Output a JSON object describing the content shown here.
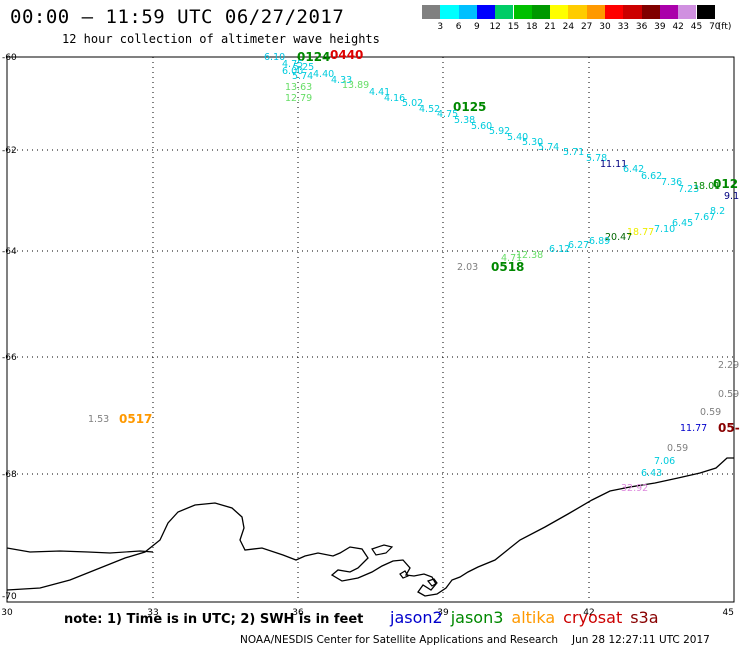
{
  "header": {
    "title": "00:00 – 11:59 UTC 06/27/2017",
    "subtitle": "12 hour collection of altimeter wave heights"
  },
  "legend_scale": {
    "colors": [
      "#808080",
      "#00ffff",
      "#00c0ff",
      "#0000ff",
      "#00cc66",
      "#00c000",
      "#009900",
      "#ffff00",
      "#ffcc00",
      "#ff9900",
      "#ff0000",
      "#cc0000",
      "#800000",
      "#aa00aa",
      "#d090e0",
      "#000000"
    ],
    "labels": [
      "3",
      "6",
      "9",
      "12",
      "15",
      "18",
      "21",
      "24",
      "27",
      "30",
      "33",
      "36",
      "39",
      "42",
      "45",
      "70"
    ],
    "unit": "(ft)"
  },
  "axes": {
    "lon_ticks": [
      "30",
      "33",
      "36",
      "39",
      "42",
      "45"
    ],
    "lat_ticks": [
      "-60",
      "-62",
      "-64",
      "-66",
      "-68",
      "-70"
    ]
  },
  "wave_labels": [
    {
      "text": "6.10",
      "color": "#00c0e0"
    },
    {
      "text": "0124",
      "color": "#008800",
      "bold": true
    },
    {
      "text": "0440",
      "color": "#dd0000",
      "bold": true
    },
    {
      "text": "4.75",
      "color": "#00ccdd"
    },
    {
      "text": "6.00",
      "color": "#00ccdd"
    },
    {
      "text": "5.25",
      "color": "#00ccdd"
    },
    {
      "text": "5.74",
      "color": "#00ccdd"
    },
    {
      "text": "4.40",
      "color": "#00ccdd"
    },
    {
      "text": "4.33",
      "color": "#00ccdd"
    },
    {
      "text": "13.63",
      "color": "#66dd66"
    },
    {
      "text": "13.89",
      "color": "#66dd66"
    },
    {
      "text": "12.79",
      "color": "#66dd66"
    },
    {
      "text": "4.41",
      "color": "#00ccdd"
    },
    {
      "text": "4.16",
      "color": "#00ccdd"
    },
    {
      "text": "5.02",
      "color": "#00ccdd"
    },
    {
      "text": "4.52",
      "color": "#00ccdd"
    },
    {
      "text": "0125",
      "color": "#008800",
      "bold": true
    },
    {
      "text": "4.75",
      "color": "#00ccdd"
    },
    {
      "text": "5.38",
      "color": "#00ccdd"
    },
    {
      "text": "5.60",
      "color": "#00ccdd"
    },
    {
      "text": "5.92",
      "color": "#00ccdd"
    },
    {
      "text": "5.40",
      "color": "#00ccdd"
    },
    {
      "text": "5.30",
      "color": "#00ccdd"
    },
    {
      "text": "5.74",
      "color": "#00ccdd"
    },
    {
      "text": "5.71",
      "color": "#00ccdd"
    },
    {
      "text": "5.78",
      "color": "#00ccdd"
    },
    {
      "text": "11.11",
      "color": "#000080"
    },
    {
      "text": "6.42",
      "color": "#00ccdd"
    },
    {
      "text": "6.62",
      "color": "#00ccdd"
    },
    {
      "text": "7.36",
      "color": "#00ccdd"
    },
    {
      "text": "7.23",
      "color": "#00ccdd"
    },
    {
      "text": "18.01",
      "color": "#008800"
    },
    {
      "text": "012",
      "color": "#008800",
      "bold": true
    },
    {
      "text": "9.1",
      "color": "#000080"
    },
    {
      "text": "8.2",
      "color": "#00ccdd"
    },
    {
      "text": "7.67",
      "color": "#00ccdd"
    },
    {
      "text": "6.45",
      "color": "#00ccdd"
    },
    {
      "text": "7.10",
      "color": "#00ccdd"
    },
    {
      "text": "18.77",
      "color": "#eeee00"
    },
    {
      "text": "20.47",
      "color": "#006600"
    },
    {
      "text": "6.89",
      "color": "#00ccdd"
    },
    {
      "text": "6.27",
      "color": "#00ccdd"
    },
    {
      "text": "6.12",
      "color": "#00ccdd"
    },
    {
      "text": "12.38",
      "color": "#66dd66"
    },
    {
      "text": "4.71",
      "color": "#66dd66"
    },
    {
      "text": "2.03",
      "color": "#808080"
    },
    {
      "text": "0518",
      "color": "#008800",
      "bold": true
    },
    {
      "text": "1.53",
      "color": "#808080"
    },
    {
      "text": "0517",
      "color": "#ff9900",
      "bold": true
    },
    {
      "text": "2.29",
      "color": "#808080"
    },
    {
      "text": "0.59",
      "color": "#808080"
    },
    {
      "text": "0.59",
      "color": "#808080"
    },
    {
      "text": "11.77",
      "color": "#0000cc"
    },
    {
      "text": "05-",
      "color": "#880000",
      "bold": true
    },
    {
      "text": "0.59",
      "color": "#808080"
    },
    {
      "text": "7.06",
      "color": "#00ccdd"
    },
    {
      "text": "6.43",
      "color": "#00ccdd"
    },
    {
      "text": "32.92",
      "color": "#dd88dd"
    }
  ],
  "footer": {
    "note": "note: 1) Time is in UTC; 2) SWH is in feet",
    "satellites": [
      {
        "name": "jason2",
        "color": "#0000cc"
      },
      {
        "name": "jason3",
        "color": "#008800"
      },
      {
        "name": "altika",
        "color": "#ff9900"
      },
      {
        "name": "cryosat",
        "color": "#cc0000"
      },
      {
        "name": "s3a",
        "color": "#880000"
      }
    ],
    "credit": "NOAA/NESDIS Center for Satellite Applications and Research",
    "timestamp": "Jun 28 12:27:11 UTC 2017"
  }
}
